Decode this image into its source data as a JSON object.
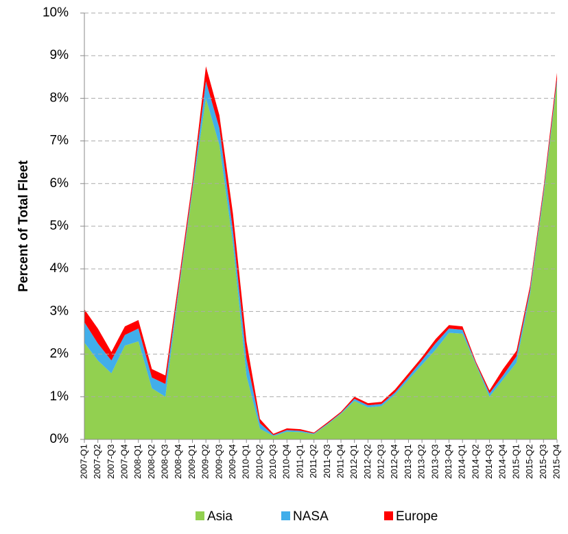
{
  "chart_data": {
    "type": "stacked_area",
    "y_label": "Percent of Total Fleet",
    "categories": [
      "2007-Q1",
      "2007-Q2",
      "2007-Q3",
      "2007-Q4",
      "2008-Q1",
      "2008-Q2",
      "2008-Q3",
      "2008-Q4",
      "2009-Q1",
      "2009-Q2",
      "2009-Q3",
      "2009-Q4",
      "2010-Q1",
      "2010-Q2",
      "2010-Q3",
      "2010-Q4",
      "2011-Q1",
      "2011-Q2",
      "2011-Q3",
      "2011-Q4",
      "2012-Q1",
      "2012-Q2",
      "2012-Q3",
      "2012-Q4",
      "2013-Q1",
      "2013-Q2",
      "2013-Q3",
      "2013-Q4",
      "2014-Q1",
      "2014-Q2",
      "2014-Q3",
      "2014-Q4",
      "2015-Q1",
      "2015-Q2",
      "2015-Q3",
      "2015-Q4"
    ],
    "series": [
      {
        "name": "Asia",
        "color": "#92d050",
        "values": [
          2.27,
          1.85,
          1.55,
          2.2,
          2.3,
          1.2,
          1.0,
          3.5,
          5.8,
          8.0,
          6.9,
          4.6,
          1.5,
          0.25,
          0.08,
          0.18,
          0.17,
          0.12,
          0.35,
          0.6,
          0.9,
          0.75,
          0.78,
          1.05,
          1.4,
          1.75,
          2.1,
          2.5,
          2.48,
          1.75,
          1.0,
          1.4,
          1.8,
          3.4,
          5.7,
          8.35
        ]
      },
      {
        "name": "NASA",
        "color": "#41aeea",
        "values": [
          0.48,
          0.4,
          0.3,
          0.25,
          0.3,
          0.25,
          0.3,
          0.1,
          0.1,
          0.4,
          0.4,
          0.3,
          0.4,
          0.13,
          0.02,
          0.04,
          0.03,
          0.02,
          0.02,
          0.02,
          0.05,
          0.05,
          0.05,
          0.05,
          0.07,
          0.1,
          0.15,
          0.1,
          0.09,
          0.03,
          0.08,
          0.1,
          0.15,
          0.1,
          0.1,
          0.1
        ]
      },
      {
        "name": "Europe",
        "color": "#ff0000",
        "values": [
          0.3,
          0.35,
          0.2,
          0.2,
          0.2,
          0.2,
          0.2,
          0.15,
          0.15,
          0.35,
          0.3,
          0.4,
          0.4,
          0.1,
          0.03,
          0.04,
          0.04,
          0.02,
          0.03,
          0.03,
          0.05,
          0.05,
          0.05,
          0.07,
          0.08,
          0.08,
          0.1,
          0.08,
          0.08,
          0.04,
          0.07,
          0.15,
          0.13,
          0.1,
          0.1,
          0.15
        ]
      }
    ],
    "ylim": [
      0,
      10
    ],
    "yticks": [
      {
        "value": 0,
        "label": "0%"
      },
      {
        "value": 1,
        "label": "1%"
      },
      {
        "value": 2,
        "label": "2%"
      },
      {
        "value": 3,
        "label": "3%"
      },
      {
        "value": 4,
        "label": "4%"
      },
      {
        "value": 5,
        "label": "5%"
      },
      {
        "value": 6,
        "label": "6%"
      },
      {
        "value": 7,
        "label": "7%"
      },
      {
        "value": 8,
        "label": "8%"
      },
      {
        "value": 9,
        "label": "9%"
      },
      {
        "value": 10,
        "label": "10%"
      }
    ],
    "grid": true
  }
}
